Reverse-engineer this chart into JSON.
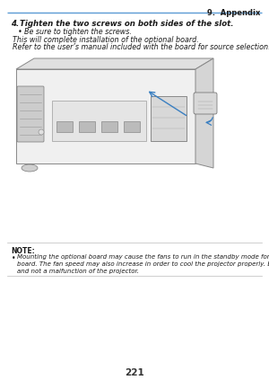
{
  "page_header": "9.  Appendix",
  "header_line_color": "#5b9bd5",
  "step_number": "4.",
  "step_text": "Tighten the two screws on both sides of the slot.",
  "bullet1": "Be sure to tighten the screws.",
  "line2": "This will complete installation of the optional board.",
  "line3": "Refer to the user’s manual included with the board for source selection.",
  "note_label": "NOTE:",
  "note_line1": "Mounting the optional board may cause the fans to run in the standby mode for the purpose of cooling depending on the optional",
  "note_line2": "board. The fan speed may also increase in order to cool the projector properly. Both of these instances are considered normal",
  "note_line3": "and not a malfunction of the projector.",
  "page_number": "221",
  "bg_color": "#ffffff",
  "text_color": "#1a1a1a",
  "header_text_color": "#1a1a1a",
  "note_line_color": "#bbbbbb",
  "body_line_color": "#cccccc"
}
